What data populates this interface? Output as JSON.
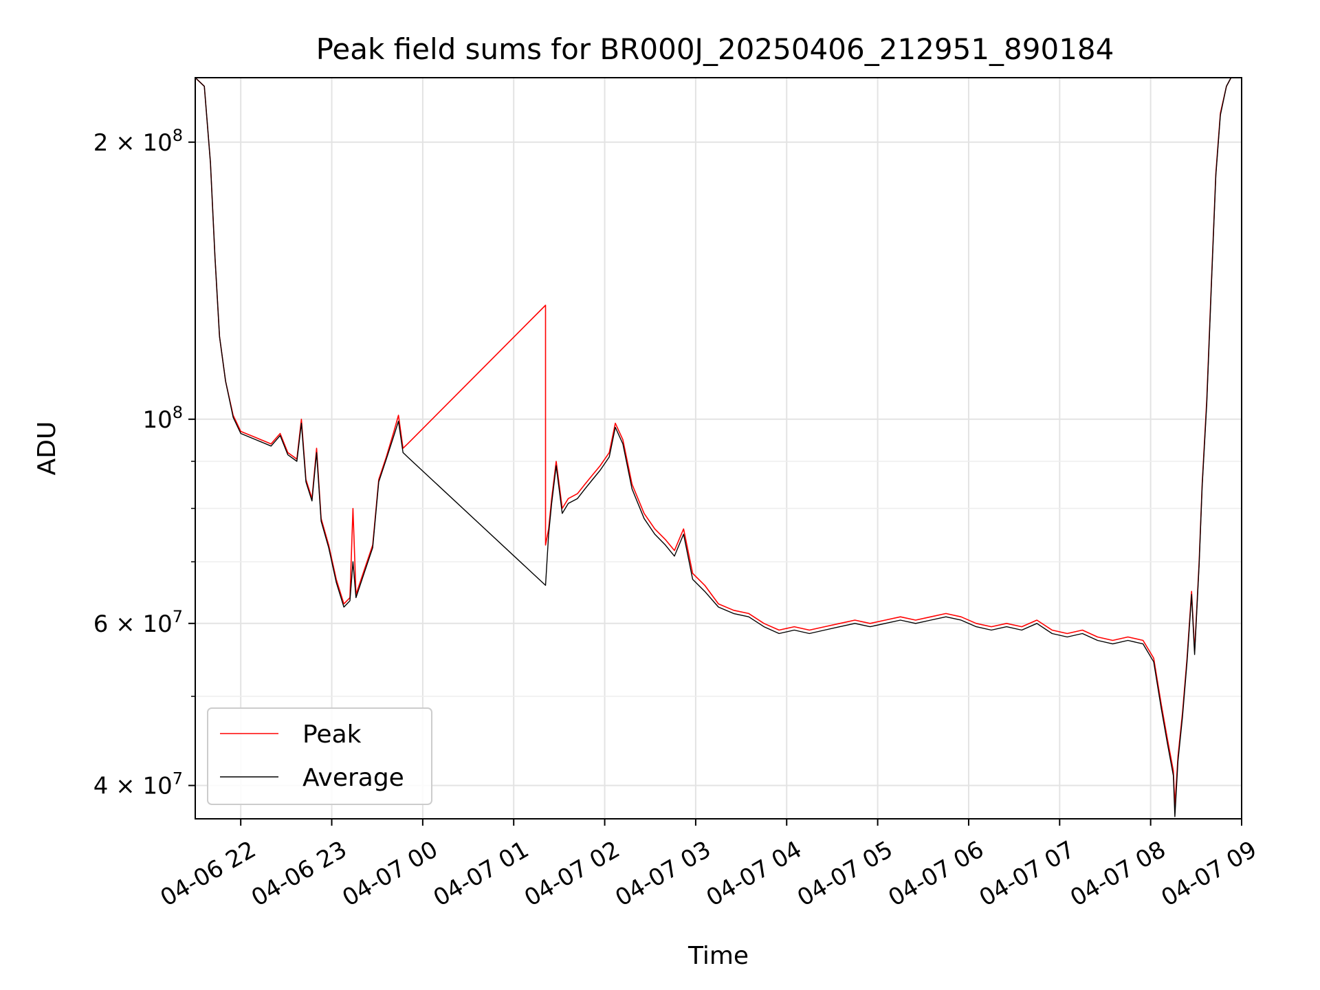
{
  "chart_data": {
    "type": "line",
    "title": "Peak field sums for BR000J_20250406_212951_890184",
    "xlabel": "Time",
    "ylabel": "ADU",
    "yscale": "log",
    "xlim": [
      "2025-04-06 21:30",
      "2025-04-07 09:00"
    ],
    "ylim": [
      36800000,
      235000000
    ],
    "grid": true,
    "legend_position": "lower-left",
    "x_tick_labels": [
      "04-06 22",
      "04-06 23",
      "04-07 00",
      "04-07 01",
      "04-07 02",
      "04-07 03",
      "04-07 04",
      "04-07 05",
      "04-07 06",
      "04-07 07",
      "04-07 08",
      "04-07 09"
    ],
    "x_ticks": [
      "2025-04-06 22:00",
      "2025-04-06 23:00",
      "2025-04-07 00:00",
      "2025-04-07 01:00",
      "2025-04-07 02:00",
      "2025-04-07 03:00",
      "2025-04-07 04:00",
      "2025-04-07 05:00",
      "2025-04-07 06:00",
      "2025-04-07 07:00",
      "2025-04-07 08:00",
      "2025-04-07 09:00"
    ],
    "y_ticks": [
      {
        "value": 40000000,
        "base": "4 × 10",
        "exp": "7"
      },
      {
        "value": 60000000,
        "base": "6 × 10",
        "exp": "7"
      },
      {
        "value": 100000000,
        "base": "10",
        "exp": "8"
      },
      {
        "value": 200000000,
        "base": "2 × 10",
        "exp": "8"
      }
    ],
    "y_minor_ticks": [
      50000000,
      70000000,
      80000000,
      90000000
    ],
    "series": [
      {
        "name": "Peak",
        "color": "#ff0000",
        "points": [
          [
            "2025-04-06 21:30",
            235000000
          ],
          [
            "2025-04-06 21:36",
            230000000
          ],
          [
            "2025-04-06 21:40",
            190000000
          ],
          [
            "2025-04-06 21:43",
            150000000
          ],
          [
            "2025-04-06 21:46",
            123000000
          ],
          [
            "2025-04-06 21:50",
            110000000
          ],
          [
            "2025-04-06 21:55",
            101000000
          ],
          [
            "2025-04-06 22:00",
            97000000
          ],
          [
            "2025-04-06 22:10",
            95500000
          ],
          [
            "2025-04-06 22:20",
            94000000
          ],
          [
            "2025-04-06 22:26",
            96500000
          ],
          [
            "2025-04-06 22:31",
            92000000
          ],
          [
            "2025-04-06 22:37",
            90500000
          ],
          [
            "2025-04-06 22:40",
            100000000
          ],
          [
            "2025-04-06 22:43",
            86000000
          ],
          [
            "2025-04-06 22:47",
            82000000
          ],
          [
            "2025-04-06 22:50",
            93000000
          ],
          [
            "2025-04-06 22:53",
            78000000
          ],
          [
            "2025-04-06 22:58",
            73000000
          ],
          [
            "2025-04-06 23:03",
            67000000
          ],
          [
            "2025-04-06 23:08",
            63000000
          ],
          [
            "2025-04-06 23:12",
            64000000
          ],
          [
            "2025-04-06 23:14",
            80000000
          ],
          [
            "2025-04-06 23:16",
            64500000
          ],
          [
            "2025-04-06 23:22",
            69000000
          ],
          [
            "2025-04-06 23:27",
            73000000
          ],
          [
            "2025-04-06 23:31",
            86000000
          ],
          [
            "2025-04-06 23:36",
            91000000
          ],
          [
            "2025-04-06 23:41",
            97000000
          ],
          [
            "2025-04-06 23:44",
            101000000
          ],
          [
            "2025-04-06 23:47",
            93000000
          ],
          [
            "2025-04-06 23:50",
            94000000
          ],
          [
            "2025-04-07 01:21",
            133000000
          ],
          [
            "2025-04-07 01:21",
            73000000
          ],
          [
            "2025-04-07 01:23",
            76000000
          ],
          [
            "2025-04-07 01:25",
            82000000
          ],
          [
            "2025-04-07 01:28",
            90000000
          ],
          [
            "2025-04-07 01:32",
            80000000
          ],
          [
            "2025-04-07 01:36",
            82000000
          ],
          [
            "2025-04-07 01:42",
            83000000
          ],
          [
            "2025-04-07 01:47",
            85000000
          ],
          [
            "2025-04-07 01:52",
            87000000
          ],
          [
            "2025-04-07 01:57",
            89000000
          ],
          [
            "2025-04-07 02:03",
            92000000
          ],
          [
            "2025-04-07 02:07",
            99000000
          ],
          [
            "2025-04-07 02:12",
            95000000
          ],
          [
            "2025-04-07 02:18",
            85000000
          ],
          [
            "2025-04-07 02:26",
            79000000
          ],
          [
            "2025-04-07 02:33",
            76000000
          ],
          [
            "2025-04-07 02:40",
            74000000
          ],
          [
            "2025-04-07 02:46",
            72000000
          ],
          [
            "2025-04-07 02:52",
            76000000
          ],
          [
            "2025-04-07 02:58",
            68000000
          ],
          [
            "2025-04-07 03:06",
            66000000
          ],
          [
            "2025-04-07 03:15",
            63000000
          ],
          [
            "2025-04-07 03:25",
            62000000
          ],
          [
            "2025-04-07 03:35",
            61500000
          ],
          [
            "2025-04-07 03:45",
            60000000
          ],
          [
            "2025-04-07 03:55",
            59000000
          ],
          [
            "2025-04-07 04:05",
            59500000
          ],
          [
            "2025-04-07 04:15",
            59000000
          ],
          [
            "2025-04-07 04:25",
            59500000
          ],
          [
            "2025-04-07 04:35",
            60000000
          ],
          [
            "2025-04-07 04:45",
            60500000
          ],
          [
            "2025-04-07 04:55",
            60000000
          ],
          [
            "2025-04-07 05:05",
            60500000
          ],
          [
            "2025-04-07 05:15",
            61000000
          ],
          [
            "2025-04-07 05:25",
            60500000
          ],
          [
            "2025-04-07 05:35",
            61000000
          ],
          [
            "2025-04-07 05:45",
            61500000
          ],
          [
            "2025-04-07 05:55",
            61000000
          ],
          [
            "2025-04-07 06:05",
            60000000
          ],
          [
            "2025-04-07 06:15",
            59500000
          ],
          [
            "2025-04-07 06:25",
            60000000
          ],
          [
            "2025-04-07 06:35",
            59500000
          ],
          [
            "2025-04-07 06:45",
            60500000
          ],
          [
            "2025-04-07 06:55",
            59000000
          ],
          [
            "2025-04-07 07:05",
            58500000
          ],
          [
            "2025-04-07 07:15",
            59000000
          ],
          [
            "2025-04-07 07:25",
            58000000
          ],
          [
            "2025-04-07 07:35",
            57500000
          ],
          [
            "2025-04-07 07:45",
            58000000
          ],
          [
            "2025-04-07 07:55",
            57500000
          ],
          [
            "2025-04-07 08:02",
            55000000
          ],
          [
            "2025-04-07 08:07",
            49000000
          ],
          [
            "2025-04-07 08:11",
            45000000
          ],
          [
            "2025-04-07 08:15",
            41500000
          ],
          [
            "2025-04-07 08:16",
            38000000
          ],
          [
            "2025-04-07 08:18",
            43000000
          ],
          [
            "2025-04-07 08:21",
            48000000
          ],
          [
            "2025-04-07 08:24",
            55000000
          ],
          [
            "2025-04-07 08:27",
            65000000
          ],
          [
            "2025-04-07 08:29",
            56000000
          ],
          [
            "2025-04-07 08:32",
            70000000
          ],
          [
            "2025-04-07 08:34",
            85000000
          ],
          [
            "2025-04-07 08:37",
            105000000
          ],
          [
            "2025-04-07 08:40",
            140000000
          ],
          [
            "2025-04-07 08:43",
            185000000
          ],
          [
            "2025-04-07 08:46",
            215000000
          ],
          [
            "2025-04-07 08:50",
            230000000
          ],
          [
            "2025-04-07 08:53",
            235000000
          ]
        ]
      },
      {
        "name": "Average",
        "color": "#000000",
        "points": [
          [
            "2025-04-06 21:30",
            235000000
          ],
          [
            "2025-04-06 21:36",
            230000000
          ],
          [
            "2025-04-06 21:40",
            190000000
          ],
          [
            "2025-04-06 21:43",
            150000000
          ],
          [
            "2025-04-06 21:46",
            123000000
          ],
          [
            "2025-04-06 21:50",
            110000000
          ],
          [
            "2025-04-06 21:55",
            100500000
          ],
          [
            "2025-04-06 22:00",
            96500000
          ],
          [
            "2025-04-06 22:10",
            95000000
          ],
          [
            "2025-04-06 22:20",
            93500000
          ],
          [
            "2025-04-06 22:26",
            96000000
          ],
          [
            "2025-04-06 22:31",
            91500000
          ],
          [
            "2025-04-06 22:37",
            90000000
          ],
          [
            "2025-04-06 22:40",
            99000000
          ],
          [
            "2025-04-06 22:43",
            85500000
          ],
          [
            "2025-04-06 22:47",
            81500000
          ],
          [
            "2025-04-06 22:50",
            92000000
          ],
          [
            "2025-04-06 22:53",
            77500000
          ],
          [
            "2025-04-06 22:58",
            72500000
          ],
          [
            "2025-04-06 23:03",
            66500000
          ],
          [
            "2025-04-06 23:08",
            62500000
          ],
          [
            "2025-04-06 23:12",
            63500000
          ],
          [
            "2025-04-06 23:14",
            70000000
          ],
          [
            "2025-04-06 23:16",
            64000000
          ],
          [
            "2025-04-06 23:22",
            68500000
          ],
          [
            "2025-04-06 23:27",
            72500000
          ],
          [
            "2025-04-06 23:31",
            85500000
          ],
          [
            "2025-04-06 23:36",
            90500000
          ],
          [
            "2025-04-06 23:41",
            96000000
          ],
          [
            "2025-04-06 23:44",
            99500000
          ],
          [
            "2025-04-06 23:47",
            92000000
          ],
          [
            "2025-04-06 23:50",
            91000000
          ],
          [
            "2025-04-07 01:21",
            66000000
          ],
          [
            "2025-04-07 01:23",
            75000000
          ],
          [
            "2025-04-07 01:25",
            81000000
          ],
          [
            "2025-04-07 01:28",
            89000000
          ],
          [
            "2025-04-07 01:32",
            79000000
          ],
          [
            "2025-04-07 01:36",
            81000000
          ],
          [
            "2025-04-07 01:42",
            82000000
          ],
          [
            "2025-04-07 01:47",
            84000000
          ],
          [
            "2025-04-07 01:52",
            86000000
          ],
          [
            "2025-04-07 01:57",
            88000000
          ],
          [
            "2025-04-07 02:03",
            91000000
          ],
          [
            "2025-04-07 02:07",
            98000000
          ],
          [
            "2025-04-07 02:12",
            94000000
          ],
          [
            "2025-04-07 02:18",
            84000000
          ],
          [
            "2025-04-07 02:26",
            78000000
          ],
          [
            "2025-04-07 02:33",
            75000000
          ],
          [
            "2025-04-07 02:40",
            73000000
          ],
          [
            "2025-04-07 02:46",
            71000000
          ],
          [
            "2025-04-07 02:52",
            75000000
          ],
          [
            "2025-04-07 02:58",
            67000000
          ],
          [
            "2025-04-07 03:06",
            65000000
          ],
          [
            "2025-04-07 03:15",
            62500000
          ],
          [
            "2025-04-07 03:25",
            61500000
          ],
          [
            "2025-04-07 03:35",
            61000000
          ],
          [
            "2025-04-07 03:45",
            59500000
          ],
          [
            "2025-04-07 03:55",
            58500000
          ],
          [
            "2025-04-07 04:05",
            59000000
          ],
          [
            "2025-04-07 04:15",
            58500000
          ],
          [
            "2025-04-07 04:25",
            59000000
          ],
          [
            "2025-04-07 04:35",
            59500000
          ],
          [
            "2025-04-07 04:45",
            60000000
          ],
          [
            "2025-04-07 04:55",
            59500000
          ],
          [
            "2025-04-07 05:05",
            60000000
          ],
          [
            "2025-04-07 05:15",
            60500000
          ],
          [
            "2025-04-07 05:25",
            60000000
          ],
          [
            "2025-04-07 05:35",
            60500000
          ],
          [
            "2025-04-07 05:45",
            61000000
          ],
          [
            "2025-04-07 05:55",
            60500000
          ],
          [
            "2025-04-07 06:05",
            59500000
          ],
          [
            "2025-04-07 06:15",
            59000000
          ],
          [
            "2025-04-07 06:25",
            59500000
          ],
          [
            "2025-04-07 06:35",
            59000000
          ],
          [
            "2025-04-07 06:45",
            60000000
          ],
          [
            "2025-04-07 06:55",
            58500000
          ],
          [
            "2025-04-07 07:05",
            58000000
          ],
          [
            "2025-04-07 07:15",
            58500000
          ],
          [
            "2025-04-07 07:25",
            57500000
          ],
          [
            "2025-04-07 07:35",
            57000000
          ],
          [
            "2025-04-07 07:45",
            57500000
          ],
          [
            "2025-04-07 07:55",
            57000000
          ],
          [
            "2025-04-07 08:02",
            54500000
          ],
          [
            "2025-04-07 08:07",
            48500000
          ],
          [
            "2025-04-07 08:11",
            44500000
          ],
          [
            "2025-04-07 08:15",
            41000000
          ],
          [
            "2025-04-07 08:16",
            37000000
          ],
          [
            "2025-04-07 08:18",
            42500000
          ],
          [
            "2025-04-07 08:21",
            47500000
          ],
          [
            "2025-04-07 08:24",
            54500000
          ],
          [
            "2025-04-07 08:27",
            64500000
          ],
          [
            "2025-04-07 08:29",
            55500000
          ],
          [
            "2025-04-07 08:32",
            69500000
          ],
          [
            "2025-04-07 08:34",
            84500000
          ],
          [
            "2025-04-07 08:37",
            104000000
          ],
          [
            "2025-04-07 08:40",
            139000000
          ],
          [
            "2025-04-07 08:43",
            184000000
          ],
          [
            "2025-04-07 08:46",
            214000000
          ],
          [
            "2025-04-07 08:50",
            230000000
          ],
          [
            "2025-04-07 08:53",
            235000000
          ]
        ]
      }
    ]
  }
}
